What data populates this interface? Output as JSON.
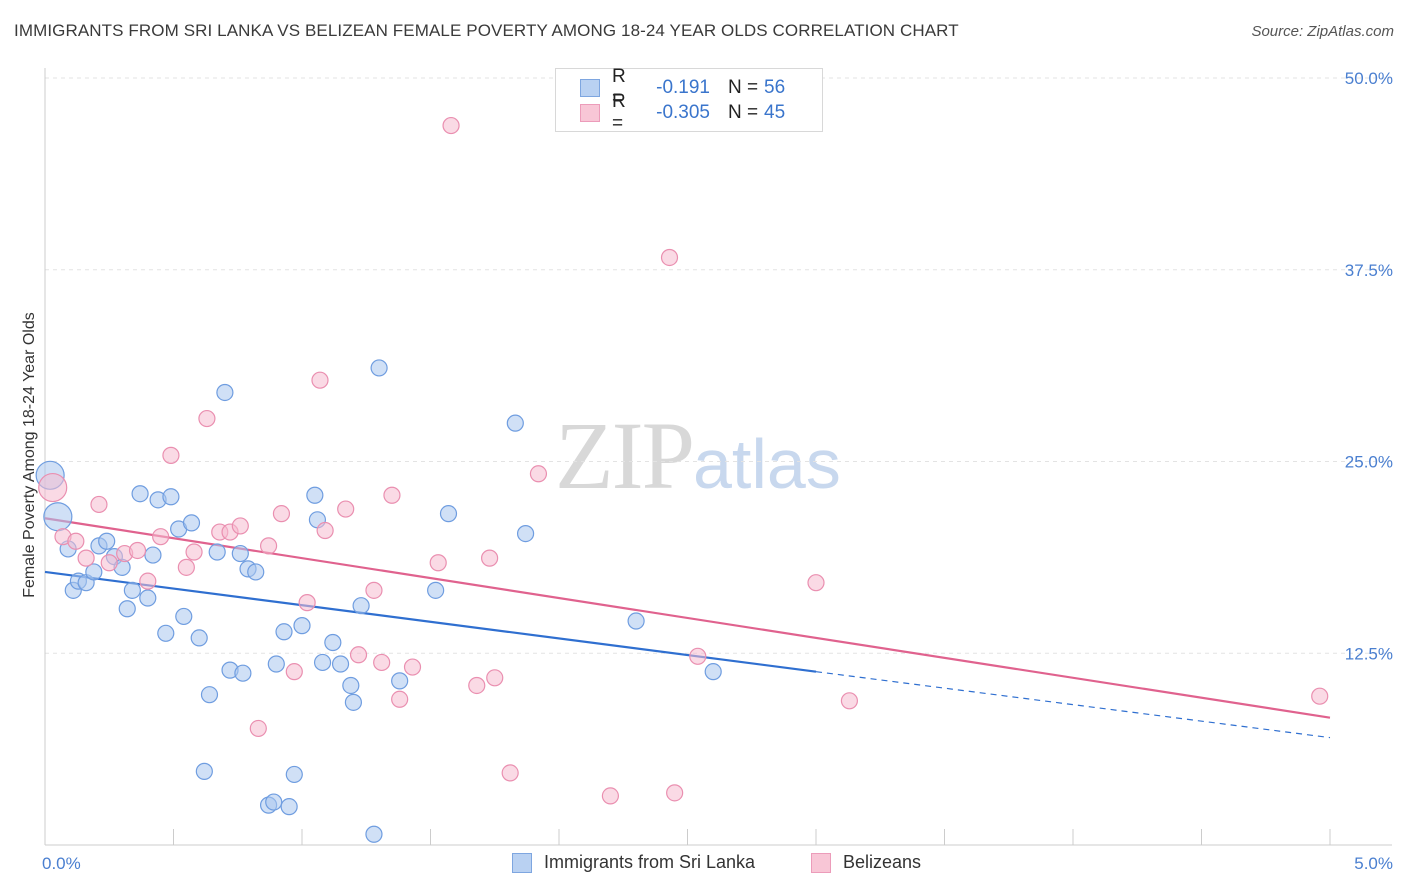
{
  "title": "IMMIGRANTS FROM SRI LANKA VS BELIZEAN FEMALE POVERTY AMONG 18-24 YEAR OLDS CORRELATION CHART",
  "source": "Source: ZipAtlas.com",
  "watermark": {
    "zip": "ZIP",
    "atlas": "atlas"
  },
  "legend": {
    "rows": [
      {
        "r_label": "R =",
        "r_value": "-0.191",
        "n_label": "N =",
        "n_value": "56"
      },
      {
        "r_label": "R =",
        "r_value": "-0.305",
        "n_label": "N =",
        "n_value": "45"
      }
    ]
  },
  "bottom_legend": {
    "series1": "Immigrants from Sri Lanka",
    "series2": "Belizeans"
  },
  "chart_data": {
    "type": "scatter",
    "ylabel": "Female Poverty Among 18-24 Year Olds",
    "xlim": [
      0,
      5
    ],
    "ylim": [
      0,
      50
    ],
    "x_ticks": [
      "0.0%",
      "5.0%"
    ],
    "y_ticks": [
      "12.5%",
      "25.0%",
      "37.5%",
      "50.0%"
    ],
    "y_tick_values": [
      12.5,
      25.0,
      37.5,
      50.0
    ],
    "grid": true,
    "legend_position": "top-center",
    "series": [
      {
        "name": "Immigrants from Sri Lanka",
        "color": "#a9c6ef",
        "stroke": "#6f9de0",
        "trend_color": "#2f6fd0",
        "trend": {
          "x0": 0.0,
          "y0": 17.8,
          "x1": 3.0,
          "y1": 11.3,
          "x_dash_end": 5.0,
          "y_dash_end": 7.0
        },
        "points": [
          [
            0.02,
            24.1
          ],
          [
            0.05,
            21.4
          ],
          [
            0.09,
            19.3
          ],
          [
            0.11,
            16.6
          ],
          [
            0.13,
            17.2
          ],
          [
            0.16,
            17.1
          ],
          [
            0.19,
            17.8
          ],
          [
            0.21,
            19.5
          ],
          [
            0.24,
            19.8
          ],
          [
            0.27,
            18.8
          ],
          [
            0.3,
            18.1
          ],
          [
            0.32,
            15.4
          ],
          [
            0.34,
            16.6
          ],
          [
            0.37,
            22.9
          ],
          [
            0.4,
            16.1
          ],
          [
            0.42,
            18.9
          ],
          [
            0.44,
            22.5
          ],
          [
            0.47,
            13.8
          ],
          [
            0.49,
            22.7
          ],
          [
            0.52,
            20.6
          ],
          [
            0.54,
            14.9
          ],
          [
            0.57,
            21.0
          ],
          [
            0.6,
            13.5
          ],
          [
            0.64,
            9.8
          ],
          [
            0.67,
            19.1
          ],
          [
            0.7,
            29.5
          ],
          [
            0.72,
            11.4
          ],
          [
            0.76,
            19.0
          ],
          [
            0.77,
            11.2
          ],
          [
            0.79,
            18.0
          ],
          [
            0.82,
            17.8
          ],
          [
            0.87,
            2.6
          ],
          [
            0.89,
            2.8
          ],
          [
            0.9,
            11.8
          ],
          [
            0.93,
            13.9
          ],
          [
            0.95,
            2.5
          ],
          [
            0.97,
            4.6
          ],
          [
            1.0,
            14.3
          ],
          [
            1.05,
            22.8
          ],
          [
            1.06,
            21.2
          ],
          [
            1.12,
            13.2
          ],
          [
            1.15,
            11.8
          ],
          [
            1.19,
            10.4
          ],
          [
            1.2,
            9.3
          ],
          [
            1.23,
            15.6
          ],
          [
            1.28,
            0.7
          ],
          [
            1.3,
            31.1
          ],
          [
            1.38,
            10.7
          ],
          [
            1.52,
            16.6
          ],
          [
            1.57,
            21.6
          ],
          [
            1.83,
            27.5
          ],
          [
            1.87,
            20.3
          ],
          [
            2.3,
            14.6
          ],
          [
            2.6,
            11.3
          ],
          [
            0.62,
            4.8
          ],
          [
            1.08,
            11.9
          ]
        ]
      },
      {
        "name": "Belizeans",
        "color": "#f6bcd0",
        "stroke": "#ea8fb0",
        "trend_color": "#e0628e",
        "trend": {
          "x0": 0.0,
          "y0": 21.3,
          "x1": 5.0,
          "y1": 8.3
        },
        "points": [
          [
            0.03,
            23.3
          ],
          [
            0.07,
            20.1
          ],
          [
            0.12,
            19.8
          ],
          [
            0.16,
            18.7
          ],
          [
            0.21,
            22.2
          ],
          [
            0.25,
            18.4
          ],
          [
            0.31,
            19.0
          ],
          [
            0.36,
            19.2
          ],
          [
            0.4,
            17.2
          ],
          [
            0.45,
            20.1
          ],
          [
            0.49,
            25.4
          ],
          [
            0.55,
            18.1
          ],
          [
            0.58,
            19.1
          ],
          [
            0.63,
            27.8
          ],
          [
            0.68,
            20.4
          ],
          [
            0.72,
            20.4
          ],
          [
            0.76,
            20.8
          ],
          [
            0.83,
            7.6
          ],
          [
            0.87,
            19.5
          ],
          [
            0.92,
            21.6
          ],
          [
            0.97,
            11.3
          ],
          [
            1.02,
            15.8
          ],
          [
            1.07,
            30.3
          ],
          [
            1.09,
            20.5
          ],
          [
            1.17,
            21.9
          ],
          [
            1.22,
            12.4
          ],
          [
            1.28,
            16.6
          ],
          [
            1.31,
            11.9
          ],
          [
            1.35,
            22.8
          ],
          [
            1.38,
            9.5
          ],
          [
            1.43,
            11.6
          ],
          [
            1.53,
            18.4
          ],
          [
            1.58,
            46.9
          ],
          [
            1.68,
            10.4
          ],
          [
            1.73,
            18.7
          ],
          [
            1.75,
            10.9
          ],
          [
            1.81,
            4.7
          ],
          [
            1.92,
            24.2
          ],
          [
            2.2,
            3.2
          ],
          [
            2.43,
            38.3
          ],
          [
            2.45,
            3.4
          ],
          [
            2.54,
            12.3
          ],
          [
            3.0,
            17.1
          ],
          [
            3.13,
            9.4
          ],
          [
            4.96,
            9.7
          ]
        ]
      }
    ]
  }
}
